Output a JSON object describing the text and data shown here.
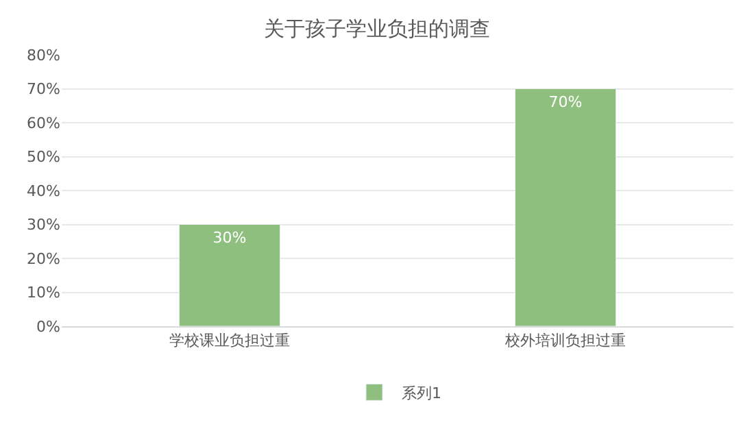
{
  "chart_data": {
    "type": "bar",
    "title": "关于孩子学业负担的调查",
    "categories": [
      "学校课业负担过重",
      "校外培训负担过重"
    ],
    "series": [
      {
        "name": "系列1",
        "color": "#8fbf7f",
        "values": [
          30,
          70
        ]
      }
    ],
    "ylim": [
      0,
      80
    ],
    "yticks": [
      {
        "value": 0,
        "label": "0%"
      },
      {
        "value": 10,
        "label": "10%"
      },
      {
        "value": 20,
        "label": "20%"
      },
      {
        "value": 30,
        "label": "30%"
      },
      {
        "value": 40,
        "label": "40%"
      },
      {
        "value": 50,
        "label": "50%"
      },
      {
        "value": 60,
        "label": "60%"
      },
      {
        "value": 70,
        "label": "70%"
      },
      {
        "value": 80,
        "label": "80%"
      }
    ],
    "value_labels": [
      "30%",
      "70%"
    ],
    "grid": "y",
    "legend": "bottom"
  }
}
